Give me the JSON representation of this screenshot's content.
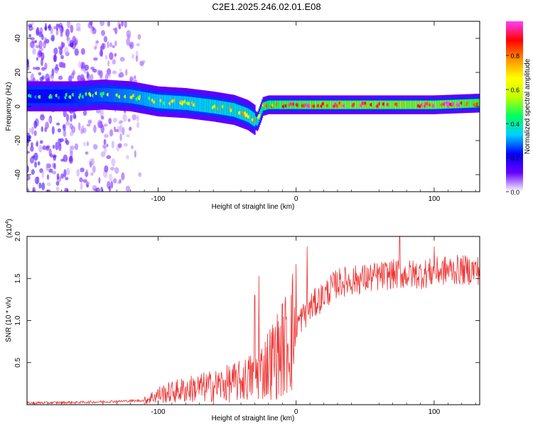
{
  "title": "C2E1.2025.246.02.01.E08",
  "chart_data": [
    {
      "type": "heatmap",
      "xlabel": "Height of straight line (km)",
      "ylabel": "Frequency (Hz)",
      "xlim": [
        -195,
        133
      ],
      "ylim": [
        -50,
        50
      ],
      "xticks": [
        -100,
        0,
        100
      ],
      "xtick_labels": [
        "-100",
        "0",
        "100"
      ],
      "yticks": [
        -40,
        -20,
        0,
        20,
        40
      ],
      "ytick_labels": [
        "-40",
        "-20",
        "0",
        "20",
        "40"
      ],
      "colorbar": {
        "label": "Normalized spectral amplitude",
        "range": [
          0,
          1
        ],
        "ticks": [
          0.0,
          0.2,
          0.4,
          0.6,
          0.8
        ],
        "tick_labels": [
          "0.0",
          "0.2",
          "0.4",
          "0.6",
          "0.8"
        ],
        "stops": [
          "#ffffff",
          "#6600ff",
          "#0000ff",
          "#00d0ff",
          "#00ff60",
          "#c0ff00",
          "#ffff00",
          "#ff9000",
          "#ff0000",
          "#ff40ff"
        ]
      },
      "ridge": {
        "x": [
          -195,
          -175,
          -160,
          -140,
          -120,
          -100,
          -80,
          -60,
          -45,
          -35,
          -28,
          -24,
          -20,
          -10,
          0,
          20,
          50,
          80,
          100,
          133
        ],
        "frequency": [
          6,
          6,
          6,
          7,
          6,
          3,
          2,
          0,
          -2,
          -5,
          -9,
          0,
          1,
          1,
          1,
          1,
          1,
          1,
          1,
          2
        ],
        "amplitude": [
          0.35,
          0.35,
          0.4,
          0.45,
          0.5,
          0.55,
          0.55,
          0.6,
          0.6,
          0.6,
          0.6,
          0.7,
          0.75,
          0.8,
          0.8,
          0.85,
          0.85,
          0.85,
          0.85,
          0.8
        ]
      },
      "noise_region_x": [
        -195,
        -120
      ]
    },
    {
      "type": "line",
      "xlabel": "Height of straight line (km)",
      "ylabel": "SNR (10 * v/v)",
      "multiplier_label": "(x10",
      "multiplier_exponent": "4",
      "xlim": [
        -195,
        133
      ],
      "ylim": [
        0,
        2.0
      ],
      "xticks": [
        -100,
        0,
        100
      ],
      "xtick_labels": [
        "-100",
        "0",
        "100"
      ],
      "yticks": [
        0.5,
        1.0,
        1.5,
        2.0
      ],
      "ytick_labels": [
        "0.5",
        "1.0",
        "1.5",
        "2.0"
      ],
      "color": "#ee3333",
      "trend": {
        "x": [
          -195,
          -150,
          -110,
          -100,
          -80,
          -60,
          -40,
          -30,
          -25,
          -20,
          -10,
          -5,
          0,
          10,
          20,
          30,
          50,
          70,
          90,
          110,
          133
        ],
        "y": [
          0.02,
          0.03,
          0.05,
          0.12,
          0.18,
          0.22,
          0.28,
          0.35,
          0.4,
          0.5,
          0.65,
          0.8,
          0.95,
          1.15,
          1.3,
          1.45,
          1.5,
          1.55,
          1.55,
          1.6,
          1.6
        ]
      },
      "peaks": [
        {
          "x": -30,
          "y": 1.3
        },
        {
          "x": -27,
          "y": 1.53
        },
        {
          "x": -10,
          "y": 1.2
        },
        {
          "x": 8,
          "y": 1.88
        },
        {
          "x": 75,
          "y": 2.0
        },
        {
          "x": 100,
          "y": 1.88
        }
      ]
    }
  ]
}
